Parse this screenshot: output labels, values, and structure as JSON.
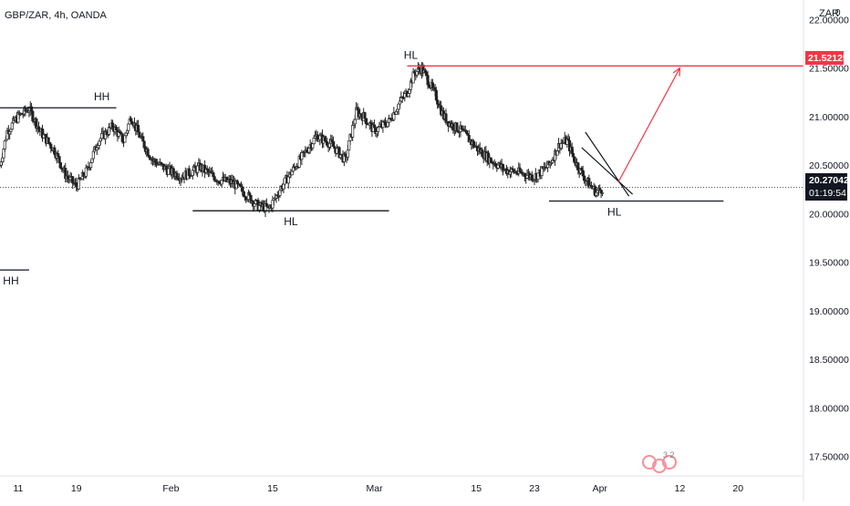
{
  "header": {
    "symbol_title": "GBP/ZAR, 4h, OANDA",
    "currency": "ZAR",
    "settings_glyph": "0"
  },
  "chart_data": {
    "type": "candlestick",
    "title": "GBP/ZAR, 4h, OANDA",
    "ylim": [
      17.3,
      22.2
    ],
    "y_ticks": [
      "17.50000",
      "18.00000",
      "18.50000",
      "19.00000",
      "19.50000",
      "20.00000",
      "20.50000",
      "21.00000",
      "21.50000",
      "22.00000"
    ],
    "y_tick_values": [
      17.5,
      18.0,
      18.5,
      19.0,
      19.5,
      20.0,
      20.5,
      21.0,
      21.5,
      22.0
    ],
    "x_ticks": [
      "11",
      "19",
      "Feb",
      "15",
      "Mar",
      "15",
      "23",
      "Apr",
      "12",
      "20"
    ],
    "x_tick_days": [
      11,
      19,
      32,
      46,
      60,
      74,
      82,
      91,
      102,
      110
    ],
    "x_range_days": [
      8.5,
      119
    ],
    "current_price": "20.27042",
    "countdown": "01:19:54",
    "target_price": "21.52125",
    "target_price_value": 21.52125,
    "current_price_value": 20.27042,
    "price_path": [
      [
        8.5,
        20.5
      ],
      [
        9.5,
        20.85
      ],
      [
        11,
        21.0
      ],
      [
        12.5,
        21.08
      ],
      [
        14,
        20.85
      ],
      [
        16,
        20.65
      ],
      [
        17.5,
        20.4
      ],
      [
        19,
        20.28
      ],
      [
        20.5,
        20.45
      ],
      [
        22,
        20.75
      ],
      [
        24,
        20.9
      ],
      [
        25.5,
        20.75
      ],
      [
        26.5,
        21.0
      ],
      [
        28,
        20.75
      ],
      [
        29.5,
        20.55
      ],
      [
        31.5,
        20.45
      ],
      [
        33.5,
        20.38
      ],
      [
        36,
        20.48
      ],
      [
        38.5,
        20.35
      ],
      [
        40.5,
        20.32
      ],
      [
        42,
        20.22
      ],
      [
        44,
        20.08
      ],
      [
        45.5,
        20.05
      ],
      [
        47,
        20.25
      ],
      [
        48.5,
        20.42
      ],
      [
        50,
        20.58
      ],
      [
        52,
        20.8
      ],
      [
        54,
        20.72
      ],
      [
        56,
        20.55
      ],
      [
        57.5,
        21.05
      ],
      [
        58.5,
        21.0
      ],
      [
        60,
        20.85
      ],
      [
        62,
        20.95
      ],
      [
        63.5,
        21.15
      ],
      [
        64.5,
        21.25
      ],
      [
        65.5,
        21.45
      ],
      [
        66.5,
        21.5
      ],
      [
        67.5,
        21.35
      ],
      [
        68.5,
        21.2
      ],
      [
        69.5,
        21.0
      ],
      [
        70.5,
        20.92
      ],
      [
        72,
        20.85
      ],
      [
        74,
        20.68
      ],
      [
        76,
        20.55
      ],
      [
        78,
        20.45
      ],
      [
        80,
        20.42
      ],
      [
        82,
        20.38
      ],
      [
        84,
        20.5
      ],
      [
        85.5,
        20.72
      ],
      [
        86.5,
        20.75
      ],
      [
        87.5,
        20.55
      ],
      [
        88.5,
        20.42
      ],
      [
        89.5,
        20.3
      ],
      [
        90.5,
        20.22
      ],
      [
        91.5,
        20.27
      ]
    ],
    "annotations": [
      {
        "label": "HH",
        "type": "swing-high"
      },
      {
        "label": "HL",
        "type": "swing-low"
      },
      {
        "label": "HH",
        "type": "swing-high"
      },
      {
        "label": "HL",
        "type": "swing-low"
      },
      {
        "label": "HL",
        "type": "swing-low"
      }
    ],
    "levels": [
      {
        "label": "HH",
        "y": 21.09,
        "x_range": [
          8.5,
          24.5
        ],
        "color": "#131722"
      },
      {
        "label": "HL",
        "y": 20.03,
        "x_range": [
          35,
          62
        ],
        "color": "#131722"
      },
      {
        "label": "HL",
        "y": 19.42,
        "x_range": [
          8.5,
          12.5
        ],
        "color": "#131722"
      },
      {
        "label": "HL",
        "y": 20.13,
        "x_range": [
          84,
          108
        ],
        "color": "#131722"
      },
      {
        "label": "HH",
        "y": 21.52125,
        "x_range": [
          64.5,
          119
        ],
        "color": "#f23645"
      }
    ],
    "projection_arrow": {
      "from": [
        93.5,
        20.32
      ],
      "to": [
        102,
        21.5
      ],
      "color": "#f23645"
    },
    "channel": {
      "upper": [
        [
          89,
          20.84
        ],
        [
          95,
          20.18
        ]
      ],
      "lower": [
        [
          88.5,
          20.68
        ],
        [
          95.5,
          20.2
        ]
      ],
      "color": "#131722"
    },
    "grid": false,
    "watermark": "3 2"
  },
  "colors": {
    "candle": "#222222",
    "accent": "#f23645",
    "axis_text": "#131722",
    "dotted_line": "#555555",
    "label_bg_dark": "#131722"
  }
}
